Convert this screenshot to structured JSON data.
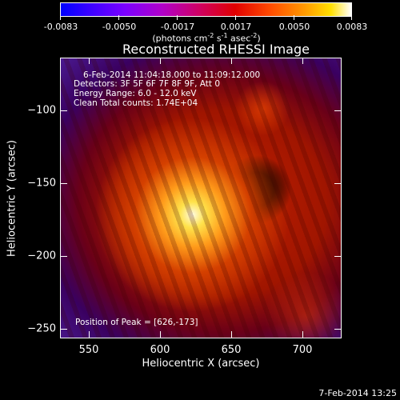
{
  "colorbar": {
    "tick_labels": [
      "-0.0083",
      "-0.0050",
      "-0.0017",
      "0.0017",
      "0.0050",
      "0.0083"
    ],
    "units_text": "(photons cm",
    "units_exp1": "-2",
    "units_mid": " s",
    "units_exp2": "-1",
    "units_mid2": " asec",
    "units_exp3": "-2",
    "units_close": ")",
    "colors": [
      "#0000ff",
      "#7a00ff",
      "#e00000",
      "#ff9a00",
      "#ffffff"
    ]
  },
  "title": "Reconstructed RHESSI Image",
  "annotations": {
    "time_range": "6-Feb-2014 11:04:18.000 to 11:09:12.000",
    "detectors": "Detectors: 3F 5F 6F 7F 8F 9F, Att 0",
    "energy": "Energy Range: 6.0 - 12.0 keV",
    "clean": "Clean    Total counts: 1.74E+04",
    "peak": "Position of Peak = [626,-173]"
  },
  "axes": {
    "xlabel": "Heliocentric X (arcsec)",
    "ylabel": "Heliocentric Y (arcsec)",
    "x_tick_labels": [
      "550",
      "600",
      "650",
      "700"
    ],
    "y_tick_labels": [
      "−100",
      "−150",
      "−200",
      "−250"
    ]
  },
  "footer_date": "7-Feb-2014 13:25"
}
